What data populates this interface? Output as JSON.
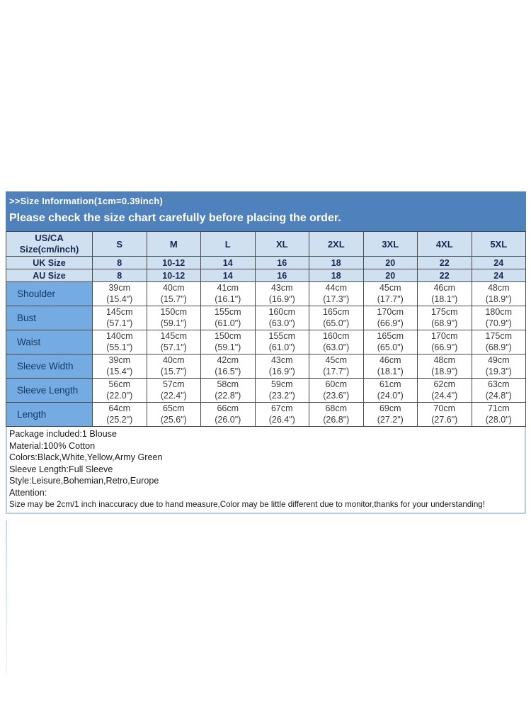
{
  "header": {
    "line1": ">>Size Information(1cm=0.39inch)",
    "line2": "Please check the size chart carefully before placing the order."
  },
  "table": {
    "corner": {
      "line1": "US/CA",
      "line2": "Size(cm/inch)"
    },
    "size_columns": [
      "S",
      "M",
      "L",
      "XL",
      "2XL",
      "3XL",
      "4XL",
      "5XL"
    ],
    "uk_row": {
      "label": "UK Size",
      "values": [
        "8",
        "10-12",
        "14",
        "16",
        "18",
        "20",
        "22",
        "24"
      ]
    },
    "au_row": {
      "label": "AU Size",
      "values": [
        "8",
        "10-12",
        "14",
        "16",
        "18",
        "20",
        "22",
        "24"
      ]
    },
    "measurement_rows": [
      {
        "label": "Shoulder",
        "cm": [
          "39cm",
          "40cm",
          "41cm",
          "43cm",
          "44cm",
          "45cm",
          "46cm",
          "48cm"
        ],
        "inch": [
          "(15.4\")",
          "(15.7\")",
          "(16.1\")",
          "(16.9\")",
          "(17.3\")",
          "(17.7\")",
          "(18.1\")",
          "(18.9\")"
        ]
      },
      {
        "label": "Bust",
        "cm": [
          "145cm",
          "150cm",
          "155cm",
          "160cm",
          "165cm",
          "170cm",
          "175cm",
          "180cm"
        ],
        "inch": [
          "(57.1\")",
          "(59.1\")",
          "(61.0\")",
          "(63.0\")",
          "(65.0\")",
          "(66.9\")",
          "(68.9\")",
          "(70.9\")"
        ]
      },
      {
        "label": "Waist",
        "cm": [
          "140cm",
          "145cm",
          "150cm",
          "155cm",
          "160cm",
          "165cm",
          "170cm",
          "175cm"
        ],
        "inch": [
          "(55.1\")",
          "(57.1\")",
          "(59.1\")",
          "(61.0\")",
          "(63.0\")",
          "(65.0\")",
          "(66.9\")",
          "(68.9\")"
        ]
      },
      {
        "label": "Sleeve Width",
        "cm": [
          "39cm",
          "40cm",
          "42cm",
          "43cm",
          "45cm",
          "46cm",
          "48cm",
          "49cm"
        ],
        "inch": [
          "(15.4\")",
          "(15.7\")",
          "(16.5\")",
          "(16.9\")",
          "(17.7\")",
          "(18.1\")",
          "(18.9\")",
          "(19.3\")"
        ]
      },
      {
        "label": "Sleeve Length",
        "cm": [
          "56cm",
          "57cm",
          "58cm",
          "59cm",
          "60cm",
          "61cm",
          "62cm",
          "63cm"
        ],
        "inch": [
          "(22.0\")",
          "(22.4\")",
          "(22.8\")",
          "(23.2\")",
          "(23.6\")",
          "(24.0\")",
          "(24.4\")",
          "(24.8\")"
        ]
      },
      {
        "label": "Length",
        "cm": [
          "64cm",
          "65cm",
          "66cm",
          "67cm",
          "68cm",
          "69cm",
          "70cm",
          "71cm"
        ],
        "inch": [
          "(25.2\")",
          "(25.6\")",
          "(26.0\")",
          "(26.4\")",
          "(26.8\")",
          "(27.2\")",
          "(27.6\")",
          "(28.0\")"
        ]
      }
    ]
  },
  "footer": {
    "lines": [
      "Package included:1 Blouse",
      "Material:100% Cotton",
      "Colors:Black,White,Yellow,Army Green",
      "Sleeve Length:Full Sleeve",
      "Style:Leisure,Bohemian,Retro,Europe",
      "Attention:",
      "Size may be 2cm/1 inch inaccuracy due to hand measure,Color may be little different due to monitor,thanks for your understanding!"
    ]
  },
  "colors": {
    "banner_blue": "#4f81bd",
    "header_row_bg": "#cfe0f1",
    "label_column_bg": "#73abe2",
    "header_text": "#17294e",
    "grid_border": "#4a4a4a",
    "footer_border": "#b3cde8"
  }
}
